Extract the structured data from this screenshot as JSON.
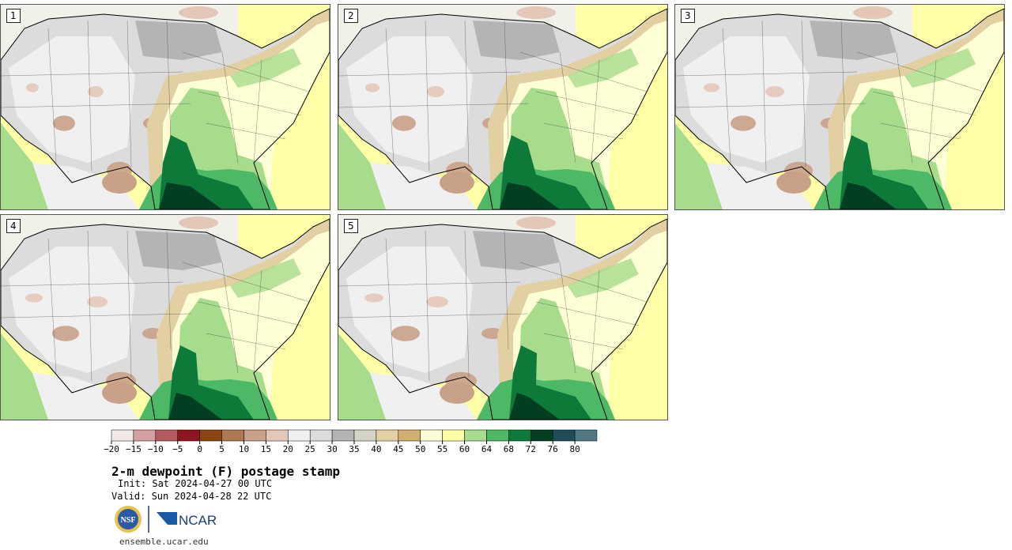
{
  "panels": [
    {
      "label": "1",
      "variant": 0
    },
    {
      "label": "2",
      "variant": 1
    },
    {
      "label": "3",
      "variant": 2
    },
    {
      "label": "4",
      "variant": 3
    },
    {
      "label": "5",
      "variant": 4
    }
  ],
  "colorbar": {
    "colors": [
      "#f2e8e8",
      "#d49fa0",
      "#b35a5d",
      "#8c1520",
      "#8b4513",
      "#b07850",
      "#c9a088",
      "#e3c8b8",
      "#f0f0f0",
      "#dcdcdc",
      "#b4b4b4",
      "#d4d4c4",
      "#e2cfa2",
      "#cfb071",
      "#ffffd6",
      "#ffffa8",
      "#a7dc8c",
      "#4db865",
      "#0e7a3a",
      "#033d22",
      "#1e4d5a",
      "#4f7a84"
    ],
    "ticks": [
      "−20",
      "−15",
      "−10",
      "−5",
      "0",
      "5",
      "10",
      "15",
      "20",
      "25",
      "30",
      "35",
      "40",
      "45",
      "50",
      "55",
      "60",
      "64",
      "68",
      "72",
      "76",
      "80"
    ]
  },
  "title": "2-m dewpoint (F) postage stamp",
  "init": "Init: Sat 2024-04-27 00 UTC",
  "valid": "Valid: Sun 2024-04-28 22 UTC",
  "logos": {
    "nsf": "NSF",
    "ncar": "NCAR"
  },
  "url": "ensemble.ucar.edu"
}
